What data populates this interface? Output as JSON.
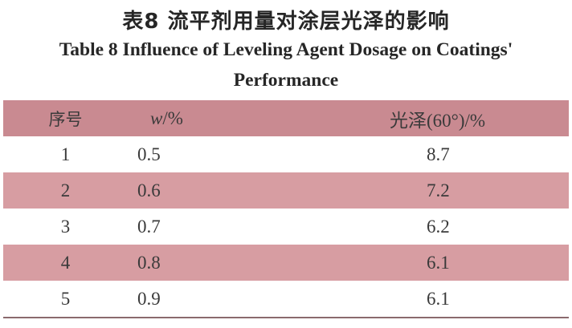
{
  "title_cn": "表8  流平剂用量对涂层光泽的影响",
  "title_en_line1": "Table 8    Influence of Leveling Agent Dosage on Coatings'",
  "title_en_line2": "Performance",
  "table": {
    "headers": {
      "no": "序号",
      "w_var": "w",
      "w_unit": "/%",
      "gloss": "光泽(60°)/%"
    },
    "rows": [
      {
        "no": "1",
        "w": "0.5",
        "gloss": "8.7"
      },
      {
        "no": "2",
        "w": "0.6",
        "gloss": "7.2"
      },
      {
        "no": "3",
        "w": "0.7",
        "gloss": "6.2"
      },
      {
        "no": "4",
        "w": "0.8",
        "gloss": "6.1"
      },
      {
        "no": "5",
        "w": "0.9",
        "gloss": "6.1"
      }
    ]
  },
  "colors": {
    "header_band": "#c98a91",
    "row_band": "#d79da2"
  }
}
